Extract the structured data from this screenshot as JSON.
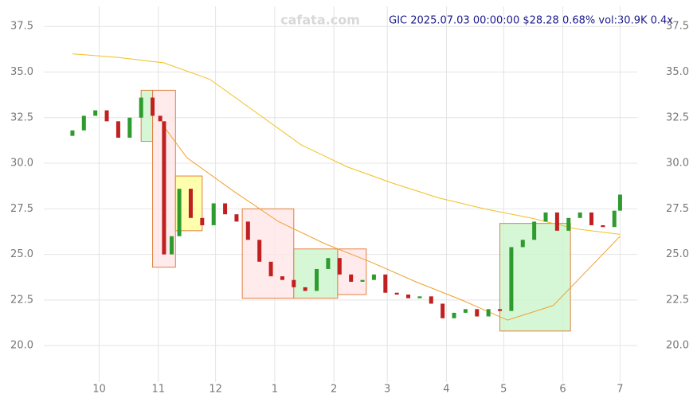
{
  "chart_data": {
    "type": "candlestick",
    "title": "GIC 2025.07.03 00:00:00 $28.28 0.68% vol:30.9K 0.4x",
    "watermark": "cafata.com",
    "xlim": [
      1,
      312
    ],
    "ylim": [
      18.0,
      38.6
    ],
    "xticks": [
      {
        "value": 30,
        "label": "10"
      },
      {
        "value": 61,
        "label": "11"
      },
      {
        "value": 91,
        "label": "12"
      },
      {
        "value": 122,
        "label": "1"
      },
      {
        "value": 153,
        "label": "2"
      },
      {
        "value": 181,
        "label": "3"
      },
      {
        "value": 212,
        "label": "4"
      },
      {
        "value": 242,
        "label": "5"
      },
      {
        "value": 273,
        "label": "6"
      },
      {
        "value": 303,
        "label": "7"
      }
    ],
    "yticks": [
      {
        "value": 20,
        "label": "20.0"
      },
      22.5,
      {
        "value": 25,
        "label": "25.0"
      },
      27.5,
      {
        "value": 30,
        "label": "30.0"
      },
      32.5,
      {
        "value": 35,
        "label": "35.0"
      },
      37.5
    ],
    "grid": true,
    "up_color": "#2e9b2e",
    "down_color": "#c02020",
    "x": [
      16,
      22,
      28,
      34,
      40,
      46,
      52,
      58,
      62,
      64,
      68,
      72,
      78,
      84,
      90,
      96,
      102,
      108,
      114,
      120,
      126,
      132,
      138,
      144,
      150,
      156,
      162,
      168,
      174,
      180,
      186,
      192,
      198,
      204,
      210,
      216,
      222,
      228,
      234,
      240,
      246,
      252,
      258,
      264,
      270,
      276,
      282,
      288,
      294,
      300,
      303
    ],
    "open": [
      31.5,
      31.8,
      32.6,
      32.9,
      32.3,
      31.4,
      32.5,
      33.6,
      32.6,
      32.3,
      25.0,
      26.0,
      28.6,
      27.0,
      26.6,
      27.8,
      27.2,
      26.8,
      25.8,
      24.6,
      23.8,
      23.6,
      23.2,
      23.0,
      24.2,
      24.8,
      23.9,
      23.5,
      23.6,
      23.9,
      22.9,
      22.8,
      22.6,
      22.7,
      22.3,
      21.5,
      21.8,
      22.0,
      21.6,
      22.0,
      21.9,
      25.4,
      25.8,
      26.8,
      27.3,
      26.3,
      27.0,
      27.3,
      26.6,
      26.5,
      27.4
    ],
    "close": [
      31.8,
      32.6,
      32.9,
      32.3,
      31.4,
      32.5,
      33.6,
      32.6,
      32.3,
      25.0,
      26.0,
      28.6,
      27.0,
      26.6,
      27.8,
      27.2,
      26.8,
      25.8,
      24.6,
      23.8,
      23.6,
      23.2,
      23.0,
      24.2,
      24.8,
      23.9,
      23.5,
      23.6,
      23.9,
      22.9,
      22.8,
      22.6,
      22.7,
      22.3,
      21.5,
      21.8,
      22.0,
      21.6,
      22.0,
      21.9,
      25.4,
      25.8,
      26.8,
      27.3,
      26.3,
      27.0,
      27.3,
      26.6,
      26.5,
      27.4,
      28.28
    ],
    "series": [
      {
        "color": "#f0c020",
        "x": [
          16,
          40,
          64,
          88,
          112,
          136,
          160,
          184,
          208,
          232,
          256,
          280,
          303
        ],
        "values": [
          36.0,
          35.8,
          35.5,
          34.6,
          32.8,
          31.0,
          29.8,
          28.9,
          28.1,
          27.5,
          27.0,
          26.4,
          26.1
        ]
      },
      {
        "color": "#f0a030",
        "x": [
          64,
          76,
          100,
          124,
          148,
          172,
          196,
          220,
          244,
          268,
          292,
          303
        ],
        "values": [
          32.0,
          30.3,
          28.5,
          26.8,
          25.6,
          24.6,
          23.5,
          22.5,
          21.4,
          22.2,
          24.8,
          26.0
        ]
      }
    ],
    "boxes": [
      {
        "x0": 52,
        "x1": 58,
        "y0": 31.2,
        "y1": 34.0,
        "color": "#ccf5cc"
      },
      {
        "x0": 58,
        "x1": 70,
        "y0": 24.3,
        "y1": 34.0,
        "color": "#ffe6e6"
      },
      {
        "x0": 70,
        "x1": 84,
        "y0": 26.3,
        "y1": 29.3,
        "color": "#ffff99"
      },
      {
        "x0": 105,
        "x1": 132,
        "y0": 22.6,
        "y1": 27.5,
        "color": "#ffe6e6"
      },
      {
        "x0": 132,
        "x1": 155,
        "y0": 22.6,
        "y1": 25.3,
        "color": "#ccf5cc"
      },
      {
        "x0": 155,
        "x1": 170,
        "y0": 22.8,
        "y1": 25.3,
        "color": "#ffe6e6"
      },
      {
        "x0": 240,
        "x1": 277,
        "y0": 20.8,
        "y1": 26.7,
        "color": "#ccf5cc"
      }
    ]
  }
}
